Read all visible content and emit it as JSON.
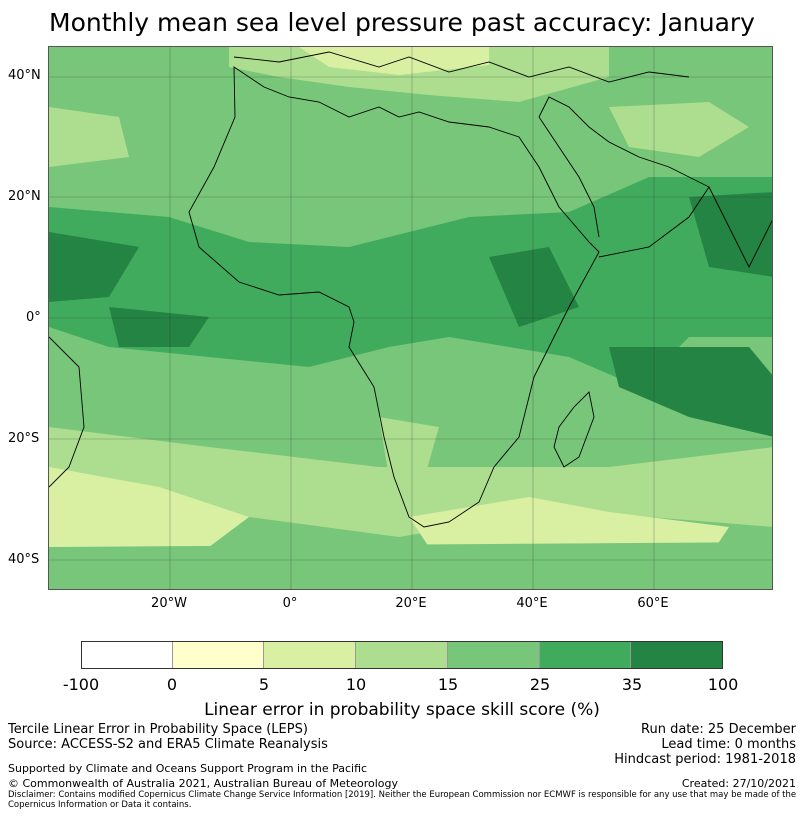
{
  "title": "Monthly mean sea level pressure past accuracy: January",
  "map": {
    "lat_labels": [
      "40°N",
      "20°N",
      "0°",
      "20°S",
      "40°S"
    ],
    "lon_labels": [
      "20°W",
      "0°",
      "20°E",
      "40°E",
      "60°E"
    ],
    "colors": {
      "band_0_5": "#ffffcc",
      "band_5_10": "#d9f0a3",
      "band_10_15": "#addd8e",
      "band_15_25": "#78c679",
      "band_25_35": "#41ab5d",
      "band_35_100": "#238443",
      "coastline": "#000000"
    }
  },
  "colorbar": {
    "ticks": [
      "-100",
      "0",
      "5",
      "10",
      "15",
      "25",
      "35",
      "100"
    ],
    "colors": [
      "#ffffff",
      "#ffffcc",
      "#d9f0a3",
      "#addd8e",
      "#78c679",
      "#41ab5d",
      "#238443"
    ],
    "label": "Linear error in probability space skill score (%)"
  },
  "info": {
    "line1": "Tercile Linear Error in Probability Space (LEPS)",
    "line2": "Source: ACCESS-S2 and ERA5 Climate Reanalysis",
    "support": "Supported by Climate and Oceans Support Program in the Pacific",
    "copyright": "© Commonwealth of Australia 2021, Australian Bureau of Meteorology",
    "run_date": "Run date: 25 December",
    "lead_time": "Lead time: 0 months",
    "hindcast": "Hindcast period: 1981-2018",
    "created": "Created: 27/10/2021",
    "disclaimer": "Disclaimer: Contains modified Copernicus Climate Change Service Information [2019]. Neither the European Commission nor ECMWF is responsible for any use that may be made of the Copernicus Information or Data it contains."
  }
}
